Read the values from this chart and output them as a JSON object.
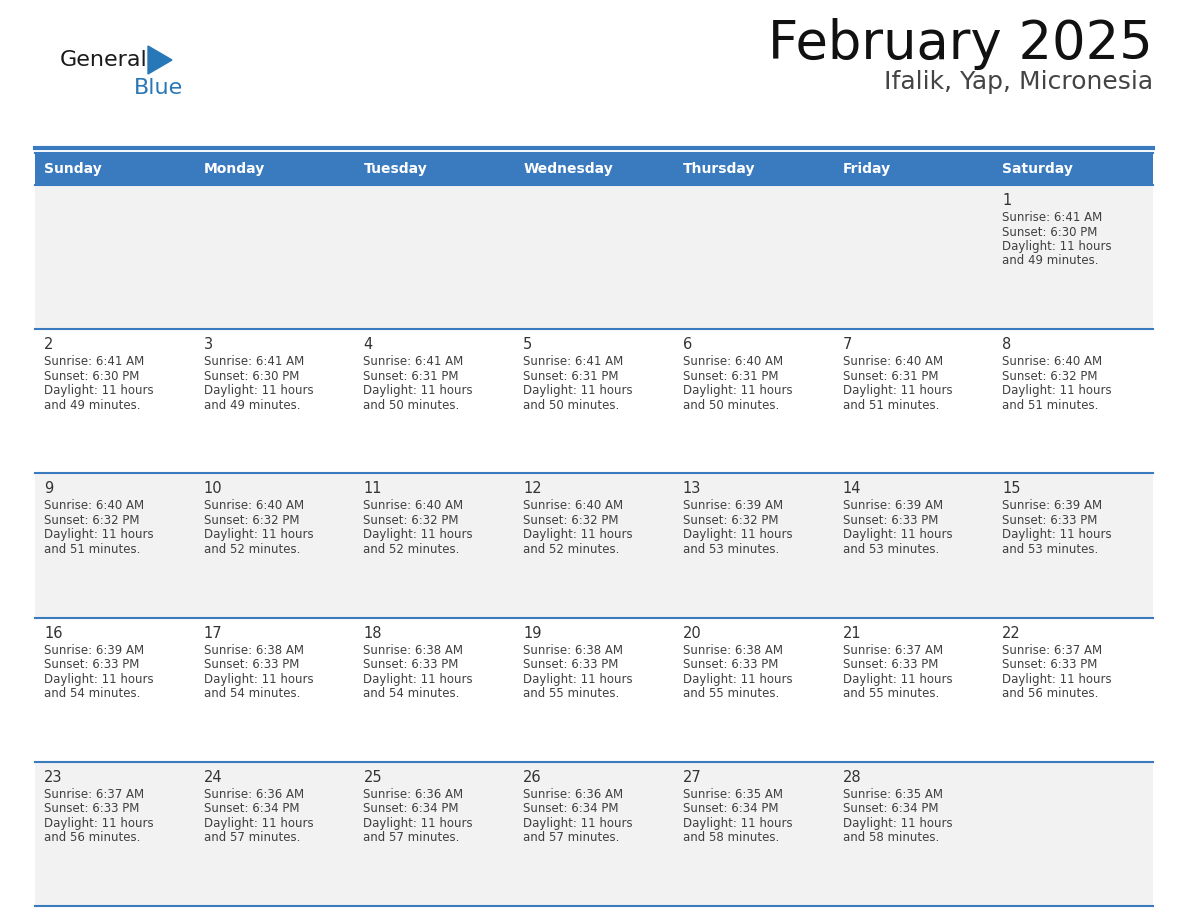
{
  "title": "February 2025",
  "subtitle": "Ifalik, Yap, Micronesia",
  "days_of_week": [
    "Sunday",
    "Monday",
    "Tuesday",
    "Wednesday",
    "Thursday",
    "Friday",
    "Saturday"
  ],
  "header_bg": "#3a7abf",
  "header_text": "#ffffff",
  "cell_bg_odd": "#f2f2f2",
  "cell_bg_even": "#ffffff",
  "border_color": "#3a7abf",
  "text_color": "#404040",
  "day_number_color": "#333333",
  "logo_general_color": "#1a1a1a",
  "logo_blue_color": "#2878b8",
  "days": [
    {
      "date": 1,
      "row": 0,
      "col": 6,
      "sunrise": "6:41 AM",
      "sunset": "6:30 PM",
      "daylight_h": "11 hours",
      "daylight_m": "and 49 minutes."
    },
    {
      "date": 2,
      "row": 1,
      "col": 0,
      "sunrise": "6:41 AM",
      "sunset": "6:30 PM",
      "daylight_h": "11 hours",
      "daylight_m": "and 49 minutes."
    },
    {
      "date": 3,
      "row": 1,
      "col": 1,
      "sunrise": "6:41 AM",
      "sunset": "6:30 PM",
      "daylight_h": "11 hours",
      "daylight_m": "and 49 minutes."
    },
    {
      "date": 4,
      "row": 1,
      "col": 2,
      "sunrise": "6:41 AM",
      "sunset": "6:31 PM",
      "daylight_h": "11 hours",
      "daylight_m": "and 50 minutes."
    },
    {
      "date": 5,
      "row": 1,
      "col": 3,
      "sunrise": "6:41 AM",
      "sunset": "6:31 PM",
      "daylight_h": "11 hours",
      "daylight_m": "and 50 minutes."
    },
    {
      "date": 6,
      "row": 1,
      "col": 4,
      "sunrise": "6:40 AM",
      "sunset": "6:31 PM",
      "daylight_h": "11 hours",
      "daylight_m": "and 50 minutes."
    },
    {
      "date": 7,
      "row": 1,
      "col": 5,
      "sunrise": "6:40 AM",
      "sunset": "6:31 PM",
      "daylight_h": "11 hours",
      "daylight_m": "and 51 minutes."
    },
    {
      "date": 8,
      "row": 1,
      "col": 6,
      "sunrise": "6:40 AM",
      "sunset": "6:32 PM",
      "daylight_h": "11 hours",
      "daylight_m": "and 51 minutes."
    },
    {
      "date": 9,
      "row": 2,
      "col": 0,
      "sunrise": "6:40 AM",
      "sunset": "6:32 PM",
      "daylight_h": "11 hours",
      "daylight_m": "and 51 minutes."
    },
    {
      "date": 10,
      "row": 2,
      "col": 1,
      "sunrise": "6:40 AM",
      "sunset": "6:32 PM",
      "daylight_h": "11 hours",
      "daylight_m": "and 52 minutes."
    },
    {
      "date": 11,
      "row": 2,
      "col": 2,
      "sunrise": "6:40 AM",
      "sunset": "6:32 PM",
      "daylight_h": "11 hours",
      "daylight_m": "and 52 minutes."
    },
    {
      "date": 12,
      "row": 2,
      "col": 3,
      "sunrise": "6:40 AM",
      "sunset": "6:32 PM",
      "daylight_h": "11 hours",
      "daylight_m": "and 52 minutes."
    },
    {
      "date": 13,
      "row": 2,
      "col": 4,
      "sunrise": "6:39 AM",
      "sunset": "6:32 PM",
      "daylight_h": "11 hours",
      "daylight_m": "and 53 minutes."
    },
    {
      "date": 14,
      "row": 2,
      "col": 5,
      "sunrise": "6:39 AM",
      "sunset": "6:33 PM",
      "daylight_h": "11 hours",
      "daylight_m": "and 53 minutes."
    },
    {
      "date": 15,
      "row": 2,
      "col": 6,
      "sunrise": "6:39 AM",
      "sunset": "6:33 PM",
      "daylight_h": "11 hours",
      "daylight_m": "and 53 minutes."
    },
    {
      "date": 16,
      "row": 3,
      "col": 0,
      "sunrise": "6:39 AM",
      "sunset": "6:33 PM",
      "daylight_h": "11 hours",
      "daylight_m": "and 54 minutes."
    },
    {
      "date": 17,
      "row": 3,
      "col": 1,
      "sunrise": "6:38 AM",
      "sunset": "6:33 PM",
      "daylight_h": "11 hours",
      "daylight_m": "and 54 minutes."
    },
    {
      "date": 18,
      "row": 3,
      "col": 2,
      "sunrise": "6:38 AM",
      "sunset": "6:33 PM",
      "daylight_h": "11 hours",
      "daylight_m": "and 54 minutes."
    },
    {
      "date": 19,
      "row": 3,
      "col": 3,
      "sunrise": "6:38 AM",
      "sunset": "6:33 PM",
      "daylight_h": "11 hours",
      "daylight_m": "and 55 minutes."
    },
    {
      "date": 20,
      "row": 3,
      "col": 4,
      "sunrise": "6:38 AM",
      "sunset": "6:33 PM",
      "daylight_h": "11 hours",
      "daylight_m": "and 55 minutes."
    },
    {
      "date": 21,
      "row": 3,
      "col": 5,
      "sunrise": "6:37 AM",
      "sunset": "6:33 PM",
      "daylight_h": "11 hours",
      "daylight_m": "and 55 minutes."
    },
    {
      "date": 22,
      "row": 3,
      "col": 6,
      "sunrise": "6:37 AM",
      "sunset": "6:33 PM",
      "daylight_h": "11 hours",
      "daylight_m": "and 56 minutes."
    },
    {
      "date": 23,
      "row": 4,
      "col": 0,
      "sunrise": "6:37 AM",
      "sunset": "6:33 PM",
      "daylight_h": "11 hours",
      "daylight_m": "and 56 minutes."
    },
    {
      "date": 24,
      "row": 4,
      "col": 1,
      "sunrise": "6:36 AM",
      "sunset": "6:34 PM",
      "daylight_h": "11 hours",
      "daylight_m": "and 57 minutes."
    },
    {
      "date": 25,
      "row": 4,
      "col": 2,
      "sunrise": "6:36 AM",
      "sunset": "6:34 PM",
      "daylight_h": "11 hours",
      "daylight_m": "and 57 minutes."
    },
    {
      "date": 26,
      "row": 4,
      "col": 3,
      "sunrise": "6:36 AM",
      "sunset": "6:34 PM",
      "daylight_h": "11 hours",
      "daylight_m": "and 57 minutes."
    },
    {
      "date": 27,
      "row": 4,
      "col": 4,
      "sunrise": "6:35 AM",
      "sunset": "6:34 PM",
      "daylight_h": "11 hours",
      "daylight_m": "and 58 minutes."
    },
    {
      "date": 28,
      "row": 4,
      "col": 5,
      "sunrise": "6:35 AM",
      "sunset": "6:34 PM",
      "daylight_h": "11 hours",
      "daylight_m": "and 58 minutes."
    }
  ],
  "num_rows": 5,
  "num_cols": 7,
  "fig_width": 11.88,
  "fig_height": 9.18,
  "dpi": 100
}
